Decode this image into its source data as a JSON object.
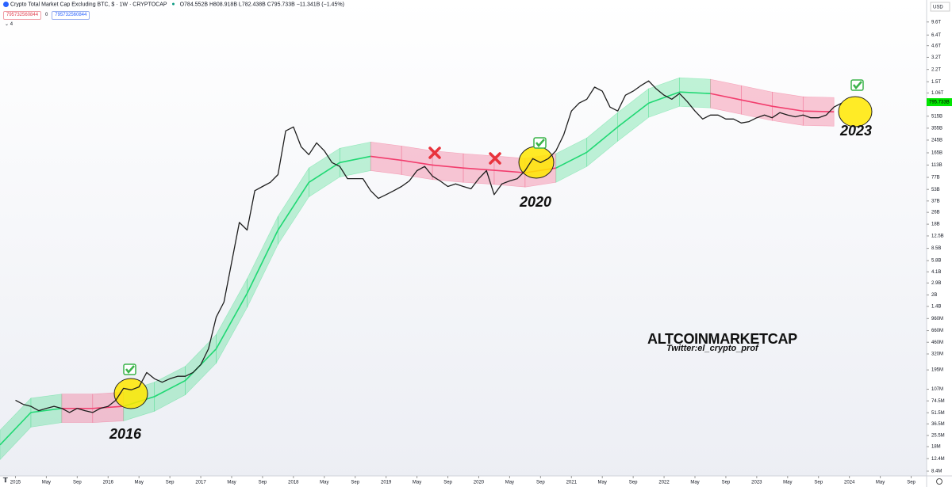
{
  "chart_data": {
    "type": "line",
    "title": "Crypto Total Market Cap Excluding BTC, $ · 1W · CRYPTOCAP",
    "ohlc_text": "O784.552B H808.918B L782.438B C795.733B −11.341B (−1.45%)",
    "inputs": [
      "795732560844",
      "0",
      "795732560844"
    ],
    "indicator_count": "4",
    "currency": "USD",
    "log_scale": true,
    "xlim": [
      "2014-11",
      "2024-11"
    ],
    "ylim": [
      7250000.0,
      19000000000000.0
    ],
    "xticks": [
      {
        "value": "2015-01",
        "label": "2015"
      },
      {
        "value": "2015-05",
        "label": "May"
      },
      {
        "value": "2015-09",
        "label": "Sep"
      },
      {
        "value": "2016-01",
        "label": "2016"
      },
      {
        "value": "2016-05",
        "label": "May"
      },
      {
        "value": "2016-09",
        "label": "Sep"
      },
      {
        "value": "2017-01",
        "label": "2017"
      },
      {
        "value": "2017-05",
        "label": "May"
      },
      {
        "value": "2017-09",
        "label": "Sep"
      },
      {
        "value": "2018-01",
        "label": "2018"
      },
      {
        "value": "2018-05",
        "label": "May"
      },
      {
        "value": "2018-09",
        "label": "Sep"
      },
      {
        "value": "2019-01",
        "label": "2019"
      },
      {
        "value": "2019-05",
        "label": "May"
      },
      {
        "value": "2019-09",
        "label": "Sep"
      },
      {
        "value": "2020-01",
        "label": "2020"
      },
      {
        "value": "2020-05",
        "label": "May"
      },
      {
        "value": "2020-09",
        "label": "Sep"
      },
      {
        "value": "2021-01",
        "label": "2021"
      },
      {
        "value": "2021-05",
        "label": "May"
      },
      {
        "value": "2021-09",
        "label": "Sep"
      },
      {
        "value": "2022-01",
        "label": "2022"
      },
      {
        "value": "2022-05",
        "label": "May"
      },
      {
        "value": "2022-09",
        "label": "Sep"
      },
      {
        "value": "2023-01",
        "label": "2023"
      },
      {
        "value": "2023-05",
        "label": "May"
      },
      {
        "value": "2023-09",
        "label": "Sep"
      },
      {
        "value": "2024-01",
        "label": "2024"
      },
      {
        "value": "2024-05",
        "label": "May"
      },
      {
        "value": "2024-09",
        "label": "Sep"
      }
    ],
    "yticks": [
      {
        "value": 9600000000000.0,
        "label": "9.6T"
      },
      {
        "value": 6400000000000.0,
        "label": "6.4T"
      },
      {
        "value": 4600000000000.0,
        "label": "4.6T"
      },
      {
        "value": 3200000000000.0,
        "label": "3.2T"
      },
      {
        "value": 2200000000000.0,
        "label": "2.2T"
      },
      {
        "value": 1500000000000.0,
        "label": "1.5T"
      },
      {
        "value": 1060000000000.0,
        "label": "1.06T"
      },
      {
        "value": 515000000000.0,
        "label": "515B"
      },
      {
        "value": 355000000000.0,
        "label": "355B"
      },
      {
        "value": 245000000000.0,
        "label": "245B"
      },
      {
        "value": 165000000000.0,
        "label": "165B"
      },
      {
        "value": 113000000000.0,
        "label": "113B"
      },
      {
        "value": 77000000000.0,
        "label": "77B"
      },
      {
        "value": 53000000000.0,
        "label": "53B"
      },
      {
        "value": 37000000000.0,
        "label": "37B"
      },
      {
        "value": 26000000000.0,
        "label": "26B"
      },
      {
        "value": 18000000000.0,
        "label": "18B"
      },
      {
        "value": 12500000000.0,
        "label": "12.5B"
      },
      {
        "value": 8500000000.0,
        "label": "8.5B"
      },
      {
        "value": 5800000000.0,
        "label": "5.8B"
      },
      {
        "value": 4100000000.0,
        "label": "4.1B"
      },
      {
        "value": 2900000000.0,
        "label": "2.9B"
      },
      {
        "value": 2000000000.0,
        "label": "2B"
      },
      {
        "value": 1400000000.0,
        "label": "1.4B"
      },
      {
        "value": 960000000.0,
        "label": "960M"
      },
      {
        "value": 660000000.0,
        "label": "660M"
      },
      {
        "value": 460000000.0,
        "label": "460M"
      },
      {
        "value": 320000000.0,
        "label": "320M"
      },
      {
        "value": 195000000.0,
        "label": "195M"
      },
      {
        "value": 107000000.0,
        "label": "107M"
      },
      {
        "value": 74500000.0,
        "label": "74.5M"
      },
      {
        "value": 51500000.0,
        "label": "51.5M"
      },
      {
        "value": 36500000.0,
        "label": "36.5M"
      },
      {
        "value": 25500000.0,
        "label": "25.5M"
      },
      {
        "value": 18000000.0,
        "label": "18M"
      },
      {
        "value": 12400000.0,
        "label": "12.4M"
      },
      {
        "value": 8400000.0,
        "label": "8.4M"
      }
    ],
    "last_price": {
      "value": 795733000000.0,
      "label": "795.733B",
      "color": "#00e600"
    },
    "x": [
      "2015-01",
      "2015-02",
      "2015-03",
      "2015-04",
      "2015-05",
      "2015-06",
      "2015-07",
      "2015-08",
      "2015-09",
      "2015-10",
      "2015-11",
      "2015-12",
      "2016-01",
      "2016-02",
      "2016-03",
      "2016-04",
      "2016-05",
      "2016-06",
      "2016-07",
      "2016-08",
      "2016-09",
      "2016-10",
      "2016-11",
      "2016-12",
      "2017-01",
      "2017-02",
      "2017-03",
      "2017-04",
      "2017-05",
      "2017-06",
      "2017-07",
      "2017-08",
      "2017-09",
      "2017-10",
      "2017-11",
      "2017-12",
      "2018-01",
      "2018-02",
      "2018-03",
      "2018-04",
      "2018-05",
      "2018-06",
      "2018-07",
      "2018-08",
      "2018-09",
      "2018-10",
      "2018-11",
      "2018-12",
      "2019-01",
      "2019-02",
      "2019-03",
      "2019-04",
      "2019-05",
      "2019-06",
      "2019-07",
      "2019-08",
      "2019-09",
      "2019-10",
      "2019-11",
      "2019-12",
      "2020-01",
      "2020-02",
      "2020-03",
      "2020-04",
      "2020-05",
      "2020-06",
      "2020-07",
      "2020-08",
      "2020-09",
      "2020-10",
      "2020-11",
      "2020-12",
      "2021-01",
      "2021-02",
      "2021-03",
      "2021-04",
      "2021-05",
      "2021-06",
      "2021-07",
      "2021-08",
      "2021-09",
      "2021-10",
      "2021-11",
      "2021-12",
      "2022-01",
      "2022-02",
      "2022-03",
      "2022-04",
      "2022-05",
      "2022-06",
      "2022-07",
      "2022-08",
      "2022-09",
      "2022-10",
      "2022-11",
      "2022-12",
      "2023-01",
      "2023-02",
      "2023-03",
      "2023-04",
      "2023-05",
      "2023-06",
      "2023-07",
      "2023-08",
      "2023-09",
      "2023-10",
      "2023-11",
      "2023-12"
    ],
    "series": [
      {
        "color": "#1e1e1e",
        "values": [
          76000000.0,
          67000000.0,
          63000000.0,
          55000000.0,
          59000000.0,
          63000000.0,
          59000000.0,
          52000000.0,
          59000000.0,
          55000000.0,
          52000000.0,
          59000000.0,
          63000000.0,
          76000000.0,
          110000000.0,
          105000000.0,
          115000000.0,
          180000000.0,
          148000000.0,
          133000000.0,
          148000000.0,
          160000000.0,
          160000000.0,
          180000000.0,
          230000000.0,
          375000000.0,
          1000000000.0,
          1600000000.0,
          5500000000.0,
          19000000000.0,
          15000000000.0,
          51000000000.0,
          58000000000.0,
          66000000000.0,
          84000000000.0,
          326000000000.0,
          369000000000.0,
          199000000000.0,
          156000000000.0,
          225000000000.0,
          176000000000.0,
          122000000000.0,
          108000000000.0,
          74000000000.0,
          74000000000.0,
          74000000000.0,
          51000000000.0,
          40000000000.0,
          45000000000.0,
          51000000000.0,
          58000000000.0,
          69000000000.0,
          95000000000.0,
          108000000000.0,
          80000000000.0,
          69000000000.0,
          58000000000.0,
          63000000000.0,
          58000000000.0,
          54000000000.0,
          74000000000.0,
          95000000000.0,
          45000000000.0,
          63000000000.0,
          69000000000.0,
          74000000000.0,
          95000000000.0,
          138000000000.0,
          122000000000.0,
          138000000000.0,
          176000000000.0,
          288000000000.0,
          604000000000.0,
          773000000000.0,
          873000000000.0,
          1270000000000.0,
          1120000000000.0,
          683000000000.0,
          604000000000.0,
          988000000000.0,
          1120000000000.0,
          1330000000000.0,
          1540000000000.0,
          1200000000000.0,
          988000000000.0,
          873000000000.0,
          1040000000000.0,
          810000000000.0,
          604000000000.0,
          472000000000.0,
          534000000000.0,
          534000000000.0,
          472000000000.0,
          472000000000.0,
          417000000000.0,
          435000000000.0,
          490000000000.0,
          534000000000.0,
          490000000000.0,
          575000000000.0,
          534000000000.0,
          505000000000.0,
          534000000000.0,
          490000000000.0,
          490000000000.0,
          534000000000.0,
          683000000000.0,
          773000000000.0
        ]
      }
    ],
    "channel": {
      "x": [
        "2014-11",
        "2015-03",
        "2015-07",
        "2015-11",
        "2016-03",
        "2016-07",
        "2016-11",
        "2017-03",
        "2017-07",
        "2017-11",
        "2018-03",
        "2018-07",
        "2018-11",
        "2019-03",
        "2019-07",
        "2019-11",
        "2020-03",
        "2020-07",
        "2020-11",
        "2021-03",
        "2021-07",
        "2021-11",
        "2022-03",
        "2022-07",
        "2022-11",
        "2023-03",
        "2023-07",
        "2023-11"
      ],
      "mid": [
        19000000.0,
        52000000.0,
        59000000.0,
        59000000.0,
        63000000.0,
        85000000.0,
        140000000.0,
        375000000.0,
        2100000000.0,
        15000000000.0,
        66000000000.0,
        122000000000.0,
        148000000000.0,
        131000000000.0,
        113000000000.0,
        103000000000.0,
        96000000000.0,
        89000000000.0,
        103000000000.0,
        168000000000.0,
        369000000000.0,
        773000000000.0,
        1090000000000.0,
        1040000000000.0,
        853000000000.0,
        701000000000.0,
        604000000000.0,
        590000000000.0
      ],
      "upper": [
        30000000.0,
        81000000.0,
        92000000.0,
        92000000.0,
        98000000.0,
        133000000.0,
        218000000.0,
        585000000.0,
        3300000000.0,
        23000000000.0,
        103000000000.0,
        190000000000.0,
        231000000000.0,
        204000000000.0,
        176000000000.0,
        161000000000.0,
        150000000000.0,
        139000000000.0,
        161000000000.0,
        262000000000.0,
        576000000000.0,
        1210000000000.0,
        1700000000000.0,
        1620000000000.0,
        1330000000000.0,
        1090000000000.0,
        942000000000.0,
        920000000000.0
      ],
      "lower": [
        12000000.0,
        33000000.0,
        38000000.0,
        38000000.0,
        40000000.0,
        54000000.0,
        90000000.0,
        240000000.0,
        1350000000.0,
        9600000000.0,
        42000000000.0,
        78000000000.0,
        95000000000.0,
        84000000000.0,
        72000000000.0,
        66000000000.0,
        62000000000.0,
        57000000000.0,
        66000000000.0,
        108000000000.0,
        237000000000.0,
        496000000000.0,
        699000000000.0,
        667000000000.0,
        547000000000.0,
        449000000000.0,
        387000000000.0,
        378000000000.0
      ],
      "colors": [
        "#1fd873",
        "#1fd873",
        "#f23d6d",
        "#f23d6d",
        "#1fd873",
        "#1fd873",
        "#1fd873",
        "#1fd873",
        "#1fd873",
        "#1fd873",
        "#1fd873",
        "#1fd873",
        "#f23d6d",
        "#f23d6d",
        "#f23d6d",
        "#f23d6d",
        "#f23d6d",
        "#f23d6d",
        "#1fd873",
        "#1fd873",
        "#1fd873",
        "#1fd873",
        "#1fd873",
        "#f23d6d",
        "#f23d6d",
        "#f23d6d",
        "#f23d6d",
        "#f23d6d"
      ]
    },
    "annotations": [
      "2016",
      "2020",
      "2023",
      "ALTCOINMARKETCAP",
      "Twitter:el_crypto_prof"
    ]
  }
}
